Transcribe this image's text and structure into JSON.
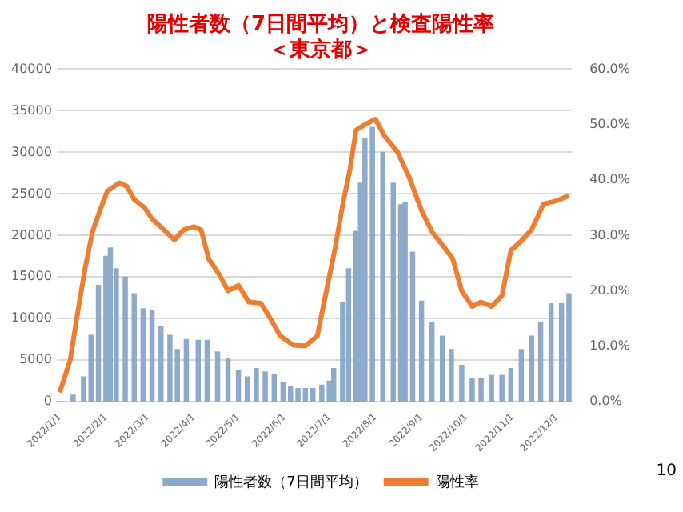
{
  "chart_data": {
    "type": "bar",
    "title": "陽性者数（7日間平均）と検査陽性率",
    "subtitle": "＜東京都＞",
    "x": [
      "2022-01-01",
      "2022-01-10",
      "2022-01-17",
      "2022-01-22",
      "2022-01-27",
      "2022-02-01",
      "2022-02-04",
      "2022-02-08",
      "2022-02-14",
      "2022-02-20",
      "2022-02-26",
      "2022-03-04",
      "2022-03-10",
      "2022-03-16",
      "2022-03-21",
      "2022-03-27",
      "2022-04-04",
      "2022-04-10",
      "2022-04-17",
      "2022-04-24",
      "2022-05-01",
      "2022-05-07",
      "2022-05-13",
      "2022-05-19",
      "2022-05-25",
      "2022-05-31",
      "2022-06-05",
      "2022-06-10",
      "2022-06-15",
      "2022-06-20",
      "2022-06-26",
      "2022-07-01",
      "2022-07-04",
      "2022-07-10",
      "2022-07-14",
      "2022-07-19",
      "2022-07-22",
      "2022-07-25",
      "2022-07-30",
      "2022-08-06",
      "2022-08-13",
      "2022-08-18",
      "2022-08-21",
      "2022-08-26",
      "2022-09-01",
      "2022-09-08",
      "2022-09-15",
      "2022-09-21",
      "2022-09-28",
      "2022-10-05",
      "2022-10-11",
      "2022-10-18",
      "2022-10-25",
      "2022-10-31",
      "2022-11-07",
      "2022-11-14",
      "2022-11-20",
      "2022-11-27",
      "2022-12-04",
      "2022-12-09"
    ],
    "series": [
      {
        "name": "陽性者数（7日間平均）",
        "color": "#8eaacb",
        "values": [
          0,
          800,
          3000,
          8000,
          14000,
          17500,
          18500,
          16000,
          15000,
          13000,
          11200,
          11000,
          9000,
          8000,
          6300,
          7500,
          7400,
          7400,
          6000,
          5200,
          3800,
          3000,
          4000,
          3600,
          3300,
          2300,
          1900,
          1600,
          1600,
          1600,
          2000,
          2500,
          4000,
          12000,
          16000,
          20500,
          26300,
          31700,
          33000,
          30000,
          26300,
          23700,
          24000,
          18000,
          12100,
          9500,
          7900,
          6300,
          4400,
          2800,
          2800,
          3200,
          3200,
          4000,
          6300,
          7900,
          9500,
          11800,
          11800,
          13000
        ]
      },
      {
        "name": "陽性率",
        "type": "line",
        "axis": "y2",
        "color": "#ed7d31",
        "x": [
          "2022-01-01",
          "2022-01-08",
          "2022-01-13",
          "2022-01-18",
          "2022-01-23",
          "2022-01-28",
          "2022-02-02",
          "2022-02-10",
          "2022-02-15",
          "2022-02-20",
          "2022-02-27",
          "2022-03-04",
          "2022-03-12",
          "2022-03-19",
          "2022-03-25",
          "2022-04-01",
          "2022-04-06",
          "2022-04-11",
          "2022-04-18",
          "2022-04-24",
          "2022-05-01",
          "2022-05-08",
          "2022-05-16",
          "2022-05-23",
          "2022-05-29",
          "2022-06-07",
          "2022-06-15",
          "2022-06-23",
          "2022-06-28",
          "2022-07-05",
          "2022-07-10",
          "2022-07-15",
          "2022-07-19",
          "2022-07-25",
          "2022-08-01",
          "2022-08-07",
          "2022-08-16",
          "2022-08-24",
          "2022-09-01",
          "2022-09-08",
          "2022-09-15",
          "2022-09-22",
          "2022-09-28",
          "2022-10-05",
          "2022-10-11",
          "2022-10-18",
          "2022-10-25",
          "2022-10-31",
          "2022-11-07",
          "2022-11-14",
          "2022-11-22",
          "2022-11-30",
          "2022-12-09"
        ],
        "values": [
          1.7,
          7.5,
          16,
          24,
          30.7,
          34.5,
          38,
          39.5,
          38.9,
          36.5,
          35,
          33,
          31,
          29.2,
          31,
          31.6,
          31,
          25.8,
          23,
          20,
          21,
          18,
          17.8,
          14.8,
          11.9,
          10.2,
          10.1,
          11.9,
          18.6,
          27.8,
          35.5,
          42,
          49,
          50,
          51,
          48,
          45,
          40.3,
          34.5,
          30.7,
          28.3,
          25.8,
          20,
          17.2,
          18,
          17.2,
          19.1,
          27.3,
          29,
          31.1,
          35.7,
          36.2,
          37.2
        ]
      }
    ],
    "xlim": [
      "2021-12-30",
      "2022-12-11"
    ],
    "xticks": [
      {
        "value": "2022-01-01",
        "label": "2022/1/1"
      },
      {
        "value": "2022-02-01",
        "label": "2022/2/1"
      },
      {
        "value": "2022-03-01",
        "label": "2022/3/1"
      },
      {
        "value": "2022-04-01",
        "label": "2022/4/1"
      },
      {
        "value": "2022-05-01",
        "label": "2022/5/1"
      },
      {
        "value": "2022-06-01",
        "label": "2022/6/1"
      },
      {
        "value": "2022-07-01",
        "label": "2022/7/1"
      },
      {
        "value": "2022-08-01",
        "label": "2022/8/1"
      },
      {
        "value": "2022-09-01",
        "label": "2022/9/1"
      },
      {
        "value": "2022-10-01",
        "label": "2022/10/1"
      },
      {
        "value": "2022-11-01",
        "label": "2022/11/1"
      },
      {
        "value": "2022-12-01",
        "label": "2022/12/1"
      }
    ],
    "ylim": [
      0,
      40000
    ],
    "yticks": [
      0,
      5000,
      10000,
      15000,
      20000,
      25000,
      30000,
      35000,
      40000
    ],
    "y2lim": [
      0,
      60
    ],
    "y2ticks": [
      {
        "value": 0,
        "label": "0.0%"
      },
      {
        "value": 10,
        "label": "10.0%"
      },
      {
        "value": 20,
        "label": "20.0%"
      },
      {
        "value": 30,
        "label": "30.0%"
      },
      {
        "value": 40,
        "label": "40.0%"
      },
      {
        "value": 50,
        "label": "50.0%"
      },
      {
        "value": 60,
        "label": "60.0%"
      }
    ],
    "grid": "y",
    "legend": "bottom",
    "marker": "none",
    "line_style": "solid",
    "annotations": [
      "10"
    ]
  }
}
